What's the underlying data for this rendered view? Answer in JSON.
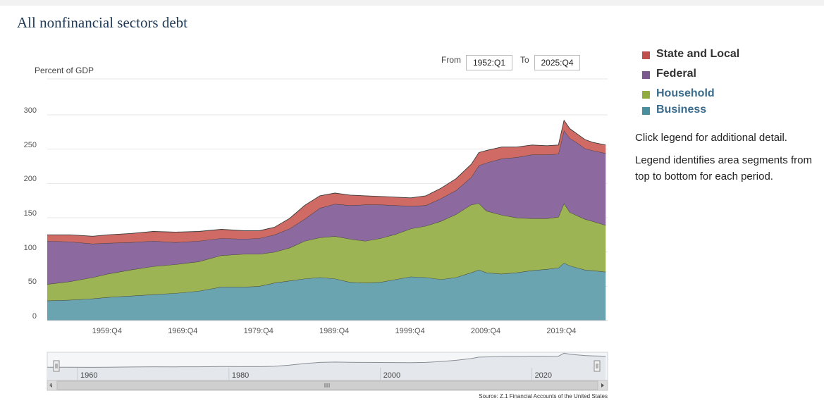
{
  "title": "All nonfinancial sectors debt",
  "range": {
    "from_label": "From",
    "from_value": "1952:Q1",
    "to_label": "To",
    "to_value": "2025:Q4"
  },
  "legend": [
    {
      "label": "State and Local",
      "color": "#c0504d",
      "text_color": "#333333"
    },
    {
      "label": "Federal",
      "color": "#7b5a90",
      "text_color": "#333333"
    },
    {
      "label": "Household",
      "color": "#92ab3f",
      "text_color": "#3a6b8c"
    },
    {
      "label": "Business",
      "color": "#4a8f9d",
      "text_color": "#3a6b8c"
    }
  ],
  "notes": {
    "line1": "Click legend for additional detail.",
    "line2": "Legend identifies area segments from top to bottom for each period."
  },
  "source": "Source: Z.1 Financial Accounts of the United States",
  "navigator": {
    "labels": [
      "1960",
      "1980",
      "2000",
      "2020"
    ]
  },
  "chart_data": {
    "type": "area",
    "stacked": true,
    "ylabel": "Percent of GDP",
    "ylim": [
      0,
      300
    ],
    "yticks": [
      0,
      50,
      100,
      150,
      200,
      250,
      300
    ],
    "xticks": [
      "1959:Q4",
      "1969:Q4",
      "1979:Q4",
      "1989:Q4",
      "1999:Q4",
      "2009:Q4",
      "2019:Q4"
    ],
    "xlim": [
      1952.0,
      2026.0
    ],
    "x": [
      1952,
      1955,
      1958,
      1960,
      1963,
      1966,
      1969,
      1972,
      1975,
      1978,
      1980,
      1982,
      1984,
      1986,
      1988,
      1990,
      1992,
      1994,
      1996,
      1998,
      2000,
      2002,
      2004,
      2006,
      2008,
      2009,
      2010,
      2012,
      2014,
      2016,
      2018,
      2019.5,
      2020.25,
      2021,
      2022,
      2023,
      2024,
      2025.75
    ],
    "series": [
      {
        "name": "Business",
        "values": [
          29,
          30,
          32,
          34,
          36,
          38,
          40,
          43,
          49,
          49,
          50,
          55,
          58,
          61,
          63,
          61,
          56,
          55,
          56,
          60,
          64,
          63,
          60,
          63,
          70,
          74,
          70,
          68,
          70,
          73,
          75,
          77,
          84,
          80,
          77,
          74,
          73,
          71
        ]
      },
      {
        "name": "Household",
        "values": [
          24,
          27,
          31,
          34,
          38,
          41,
          42,
          43,
          46,
          48,
          47,
          45,
          48,
          55,
          58,
          62,
          63,
          61,
          64,
          66,
          70,
          75,
          85,
          92,
          99,
          97,
          90,
          86,
          80,
          76,
          74,
          74,
          87,
          78,
          76,
          74,
          72,
          68
        ]
      },
      {
        "name": "Federal",
        "values": [
          63,
          58,
          49,
          45,
          40,
          37,
          32,
          30,
          25,
          22,
          23,
          25,
          28,
          32,
          43,
          47,
          49,
          53,
          49,
          42,
          33,
          30,
          33,
          35,
          40,
          55,
          70,
          82,
          88,
          93,
          93,
          92,
          106,
          108,
          106,
          103,
          103,
          105
        ]
      },
      {
        "name": "State and Local",
        "values": [
          9,
          10,
          11,
          12,
          13,
          14,
          15,
          14,
          13,
          12,
          11,
          11,
          15,
          20,
          18,
          16,
          15,
          13,
          12,
          12,
          12,
          14,
          15,
          17,
          19,
          19,
          18,
          17,
          15,
          14,
          13,
          13,
          15,
          14,
          13,
          13,
          12,
          12
        ]
      }
    ]
  }
}
